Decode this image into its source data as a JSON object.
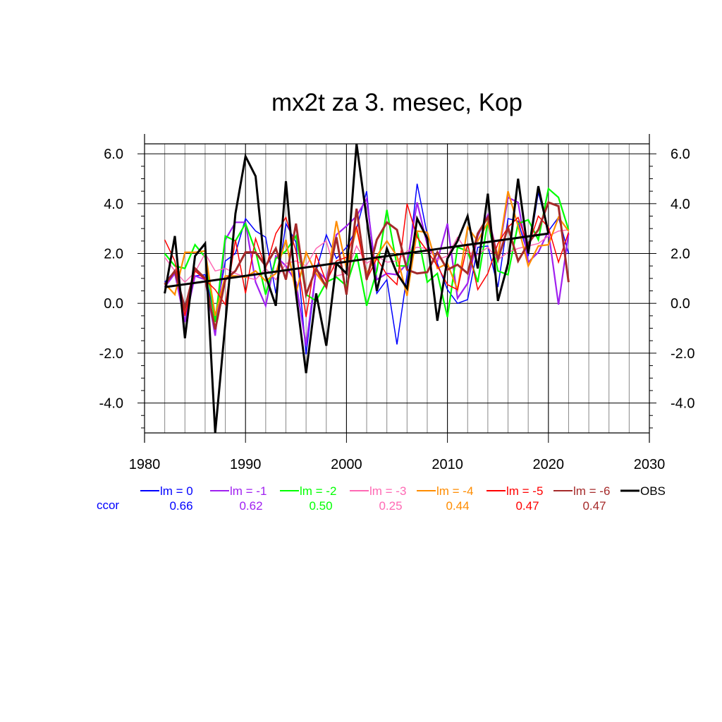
{
  "chart_data": {
    "type": "line",
    "title": "mx2t za 3. mesec, Kop",
    "xlabel": "",
    "ylabel": "",
    "xlim": [
      1980,
      2030
    ],
    "ylim": [
      -5.2,
      6.4
    ],
    "x_ticks": [
      1980,
      1990,
      2000,
      2010,
      2020,
      2030
    ],
    "x_tick_labels": [
      "1980",
      "1990",
      "2000",
      "2010",
      "2020",
      "2030"
    ],
    "y_ticks": [
      6.0,
      4.0,
      2.0,
      0.0,
      -2.0,
      -4.0
    ],
    "y_tick_labels": [
      "6.0",
      "4.0",
      "2.0",
      "0.0",
      "-2.0",
      "-4.0"
    ],
    "grid": true,
    "legend_position": "bottom",
    "ccor_label": "ccor",
    "series": [
      {
        "name": "lm = 0",
        "color": "#0000ff",
        "ccor": "0.66",
        "width": "thin",
        "x": [
          1982,
          1983,
          1984,
          1985,
          1986,
          1987,
          1988,
          1989,
          1990,
          1991,
          1992,
          1993,
          1994,
          1995,
          1996,
          1997,
          1998,
          1999,
          2000,
          2001,
          2002,
          2003,
          2004,
          2005,
          2006,
          2007,
          2008,
          2009,
          2010,
          2011,
          2012,
          2013,
          2014,
          2015,
          2016,
          2017,
          2018,
          2019,
          2020,
          2021,
          2022
        ],
        "y": [
          0.85,
          1.3,
          -0.1,
          1.1,
          1.15,
          -0.6,
          1.7,
          2.0,
          3.4,
          2.9,
          2.65,
          0.4,
          3.2,
          2.45,
          -2.05,
          1.3,
          2.75,
          1.8,
          2.25,
          3.0,
          4.5,
          0.4,
          0.95,
          -1.65,
          1.15,
          4.8,
          2.75,
          1.6,
          0.55,
          0.0,
          0.15,
          2.25,
          2.3,
          0.65,
          3.4,
          3.3,
          1.9,
          4.45,
          2.9,
          3.45,
          2.0
        ]
      },
      {
        "name": "lm = -1",
        "color": "#a020f0",
        "ccor": "0.62",
        "width": "medium",
        "x": [
          1982,
          1983,
          1984,
          1985,
          1986,
          1987,
          1988,
          1989,
          1990,
          1991,
          1992,
          1993,
          1994,
          1995,
          1996,
          1997,
          1998,
          1999,
          2000,
          2001,
          2002,
          2003,
          2004,
          2005,
          2006,
          2007,
          2008,
          2009,
          2010,
          2011,
          2012,
          2013,
          2014,
          2015,
          2016,
          2017,
          2018,
          2019,
          2020,
          2021,
          2022
        ],
        "y": [
          0.65,
          1.2,
          -0.75,
          1.1,
          0.95,
          -1.3,
          2.55,
          3.25,
          3.25,
          0.85,
          -0.1,
          1.9,
          1.5,
          0.85,
          -1.7,
          1.35,
          0.95,
          2.75,
          3.1,
          3.5,
          4.2,
          0.95,
          1.2,
          1.15,
          1.6,
          4.05,
          2.35,
          1.7,
          3.2,
          0.2,
          0.8,
          2.7,
          3.55,
          1.85,
          4.25,
          4.05,
          1.65,
          2.05,
          2.9,
          -0.05,
          2.8
        ]
      },
      {
        "name": "lm = -2",
        "color": "#00ff00",
        "ccor": "0.50",
        "width": "medium",
        "x": [
          1982,
          1983,
          1984,
          1985,
          1986,
          1987,
          1988,
          1989,
          1990,
          1991,
          1992,
          1993,
          1994,
          1995,
          1996,
          1997,
          1998,
          1999,
          2000,
          2001,
          2002,
          2003,
          2004,
          2005,
          2006,
          2007,
          2008,
          2009,
          2010,
          2011,
          2012,
          2013,
          2014,
          2015,
          2016,
          2017,
          2018,
          2019,
          2020,
          2021,
          2022
        ],
        "y": [
          2.0,
          1.5,
          1.4,
          2.35,
          1.85,
          -0.75,
          2.7,
          2.5,
          3.2,
          2.1,
          0.35,
          1.8,
          2.1,
          2.7,
          0.35,
          0.1,
          0.85,
          1.05,
          0.7,
          2.0,
          -0.1,
          1.3,
          3.75,
          1.5,
          1.5,
          2.9,
          0.85,
          1.2,
          -0.55,
          2.25,
          2.1,
          0.85,
          3.3,
          1.3,
          1.15,
          3.2,
          3.35,
          2.55,
          4.6,
          4.25,
          2.95
        ]
      },
      {
        "name": "lm = -3",
        "color": "#ff69b4",
        "ccor": "0.25",
        "width": "thin",
        "x": [
          1982,
          1983,
          1984,
          1985,
          1986,
          1987,
          1988,
          1989,
          1990,
          1991,
          1992,
          1993,
          1994,
          1995,
          1996,
          1997,
          1998,
          1999,
          2000,
          2001,
          2002,
          2003,
          2004,
          2005,
          2006,
          2007,
          2008,
          2009,
          2010,
          2011,
          2012,
          2013,
          2014,
          2015,
          2016,
          2017,
          2018,
          2019,
          2020,
          2021,
          2022
        ],
        "y": [
          1.85,
          1.3,
          0.85,
          1.25,
          2.0,
          1.3,
          1.4,
          1.2,
          1.05,
          0.95,
          1.4,
          0.95,
          1.6,
          1.7,
          1.5,
          2.2,
          2.5,
          1.1,
          1.2,
          2.3,
          1.6,
          1.9,
          1.65,
          1.7,
          2.1,
          2.25,
          2.2,
          1.75,
          1.9,
          2.65,
          2.05,
          1.95,
          2.25,
          1.75,
          2.05,
          2.2,
          2.3,
          2.4,
          2.7,
          2.9,
          2.95
        ]
      },
      {
        "name": "lm = -4",
        "color": "#ff8c00",
        "ccor": "0.44",
        "width": "medium",
        "x": [
          1982,
          1983,
          1984,
          1985,
          1986,
          1987,
          1988,
          1989,
          1990,
          1991,
          1992,
          1993,
          1994,
          1995,
          1996,
          1997,
          1998,
          1999,
          2000,
          2001,
          2002,
          2003,
          2004,
          2005,
          2006,
          2007,
          2008,
          2009,
          2010,
          2011,
          2012,
          2013,
          2014,
          2015,
          2016,
          2017,
          2018,
          2019,
          2020,
          2021,
          2022
        ],
        "y": [
          0.8,
          0.35,
          2.05,
          2.05,
          2.1,
          -0.5,
          1.1,
          1.1,
          1.05,
          1.3,
          0.9,
          1.2,
          2.55,
          0.4,
          2.05,
          1.2,
          0.65,
          3.3,
          1.4,
          3.0,
          1.2,
          1.9,
          2.5,
          1.9,
          0.3,
          2.9,
          2.85,
          1.4,
          1.6,
          0.55,
          3.05,
          2.5,
          3.25,
          1.9,
          4.5,
          3.1,
          1.5,
          2.3,
          2.35,
          3.45,
          2.9
        ]
      },
      {
        "name": "lm = -5",
        "color": "#ff0000",
        "ccor": "0.47",
        "width": "thin",
        "x": [
          1982,
          1983,
          1984,
          1985,
          1986,
          1987,
          1988,
          1989,
          1990,
          1991,
          1992,
          1993,
          1994,
          1995,
          1996,
          1997,
          1998,
          1999,
          2000,
          2001,
          2002,
          2003,
          2004,
          2005,
          2006,
          2007,
          2008,
          2009,
          2010,
          2011,
          2012,
          2013,
          2014,
          2015,
          2016,
          2017,
          2018,
          2019,
          2020,
          2021,
          2022
        ],
        "y": [
          2.55,
          1.7,
          -0.5,
          1.3,
          0.95,
          0.55,
          -0.05,
          2.55,
          0.4,
          2.6,
          1.4,
          2.8,
          3.45,
          2.1,
          -0.55,
          1.95,
          0.85,
          1.7,
          1.85,
          3.1,
          0.95,
          1.8,
          1.15,
          0.75,
          4.0,
          2.65,
          2.1,
          1.5,
          0.75,
          0.55,
          2.4,
          0.55,
          1.2,
          2.4,
          3.05,
          3.45,
          2.3,
          3.5,
          3.05,
          1.65,
          2.85
        ]
      },
      {
        "name": "lm = -6",
        "color": "#a52a2a",
        "ccor": "0.47",
        "width": "thick",
        "x": [
          1982,
          1983,
          1984,
          1985,
          1986,
          1987,
          1988,
          1989,
          1990,
          1991,
          1992,
          1993,
          1994,
          1995,
          1996,
          1997,
          1998,
          1999,
          2000,
          2001,
          2002,
          2003,
          2004,
          2005,
          2006,
          2007,
          2008,
          2009,
          2010,
          2011,
          2012,
          2013,
          2014,
          2015,
          2016,
          2017,
          2018,
          2019,
          2020,
          2021,
          2022
        ],
        "y": [
          0.75,
          1.3,
          -0.2,
          1.4,
          1.0,
          -1.05,
          0.95,
          1.3,
          2.05,
          2.05,
          1.5,
          2.2,
          0.95,
          3.2,
          0.35,
          1.4,
          0.65,
          2.65,
          0.35,
          3.8,
          0.95,
          2.55,
          3.25,
          2.95,
          1.35,
          1.2,
          1.25,
          2.05,
          1.35,
          1.55,
          1.2,
          2.8,
          3.45,
          1.75,
          3.05,
          1.7,
          2.4,
          2.95,
          4.05,
          3.9,
          0.85
        ]
      },
      {
        "name": "OBS",
        "color": "#000000",
        "ccor": "",
        "width": "obs",
        "x": [
          1982,
          1983,
          1984,
          1985,
          1986,
          1987,
          1988,
          1989,
          1990,
          1991,
          1992,
          1993,
          1994,
          1995,
          1996,
          1997,
          1998,
          1999,
          2000,
          2001,
          2002,
          2003,
          2004,
          2005,
          2006,
          2007,
          2008,
          2009,
          2010,
          2011,
          2012,
          2013,
          2014,
          2015,
          2016,
          2017,
          2018,
          2019,
          2020
        ],
        "y": [
          0.4,
          2.7,
          -1.4,
          1.9,
          2.4,
          -5.2,
          -0.8,
          3.6,
          5.9,
          5.1,
          1.1,
          -0.1,
          4.9,
          0.4,
          -2.8,
          0.4,
          -1.7,
          1.6,
          1.2,
          6.4,
          3.4,
          0.5,
          2.2,
          1.2,
          0.6,
          3.4,
          2.6,
          -0.7,
          1.8,
          2.5,
          3.5,
          1.4,
          4.4,
          0.1,
          1.6,
          5.0,
          2.0,
          4.7,
          2.8
        ]
      }
    ],
    "trend": {
      "name": "OBS trend",
      "color": "#000000",
      "x": [
        1982,
        2020
      ],
      "y": [
        0.65,
        2.8
      ]
    }
  }
}
